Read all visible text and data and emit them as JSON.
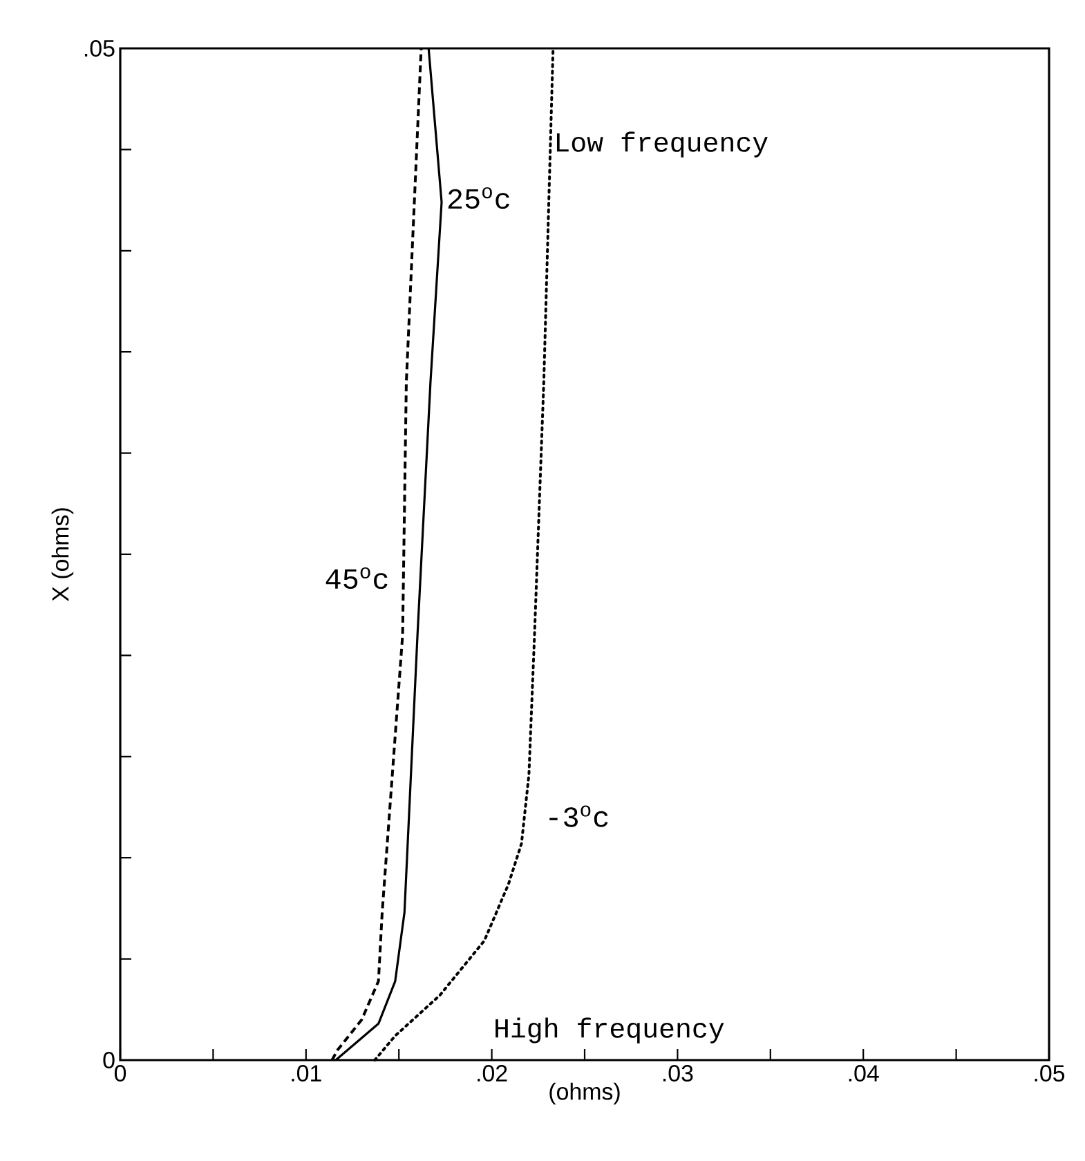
{
  "chart_data": {
    "type": "line",
    "xlabel": "(ohms)",
    "ylabel": "X (ohms)",
    "xlim": [
      0,
      0.05
    ],
    "ylim": [
      0,
      0.05
    ],
    "xticks": [
      0,
      {
        "value": 0.005,
        "label": null
      },
      {
        "value": 0.01,
        "label": ".01"
      },
      {
        "value": 0.015,
        "label": null
      },
      {
        "value": 0.02,
        "label": ".02"
      },
      {
        "value": 0.025,
        "label": null
      },
      {
        "value": 0.03,
        "label": ".03"
      },
      {
        "value": 0.035,
        "label": null
      },
      {
        "value": 0.04,
        "label": ".04"
      },
      {
        "value": 0.045,
        "label": null
      },
      {
        "value": 0.05,
        "label": ".05"
      }
    ],
    "yticks": [
      0,
      {
        "value": 0.005,
        "label": null
      },
      {
        "value": 0.01,
        "label": null
      },
      {
        "value": 0.015,
        "label": null
      },
      {
        "value": 0.02,
        "label": null
      },
      {
        "value": 0.025,
        "label": null
      },
      {
        "value": 0.03,
        "label": null
      },
      {
        "value": 0.035,
        "label": null
      },
      {
        "value": 0.04,
        "label": null
      },
      {
        "value": 0.045,
        "label": null
      },
      {
        "value": 0.05,
        "label": ".05"
      }
    ],
    "grid": false,
    "legend": false,
    "marker": "none",
    "annotations": [
      "Low frequency",
      "High frequency"
    ],
    "series": [
      {
        "name": "45$^{o}$c",
        "color": "#000000",
        "line_style": "dashed",
        "x": [
          0.0114,
          0.0117,
          0.013,
          0.0139,
          0.0141,
          0.0152,
          0.0154,
          0.0162
        ],
        "values": [
          0,
          0.0005,
          0.002,
          0.0039,
          0.0073,
          0.021,
          0.0335,
          0.05
        ]
      },
      {
        "name": "25$^{o}$c",
        "color": "#000000",
        "line_style": "solid",
        "x": [
          0.0116,
          0.0139,
          0.0148,
          0.0153,
          0.016,
          0.0167,
          0.0173,
          0.0166
        ],
        "values": [
          0,
          0.0018,
          0.0039,
          0.0073,
          0.021,
          0.0335,
          0.0424,
          0.05
        ]
      },
      {
        "name": "-3$^{o}$c",
        "color": "#000000",
        "line_style": "dotted",
        "x": [
          0.0137,
          0.0148,
          0.0172,
          0.0196,
          0.0209,
          0.0216,
          0.022,
          0.0223,
          0.0228,
          0.0233
        ],
        "values": [
          0,
          0.0012,
          0.0032,
          0.0059,
          0.0087,
          0.0107,
          0.0141,
          0.021,
          0.0335,
          0.05
        ]
      }
    ]
  }
}
